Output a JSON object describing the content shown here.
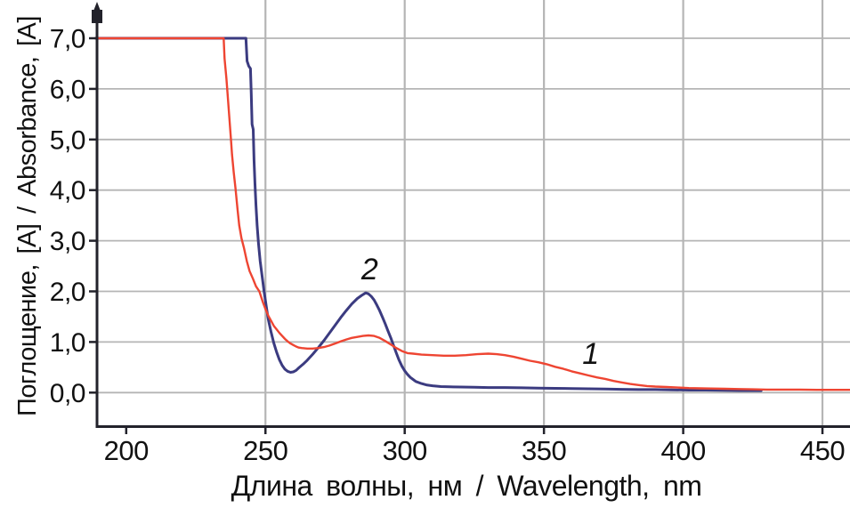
{
  "chart_data": {
    "type": "line",
    "title": "",
    "xlabel": "Длина волны, нм / Wavelength, nm",
    "ylabel": "Поглощение, [A] / Absorbance, [A]",
    "xlim": [
      189,
      460
    ],
    "ylim": [
      0,
      7
    ],
    "grid": "on",
    "legend": "none",
    "decimal_separator": ",",
    "x_ticks": [
      {
        "value": 200,
        "label": "200"
      },
      {
        "value": 250,
        "label": "250"
      },
      {
        "value": 300,
        "label": "300"
      },
      {
        "value": 350,
        "label": "350"
      },
      {
        "value": 400,
        "label": "400"
      },
      {
        "value": 450,
        "label": "450"
      }
    ],
    "y_ticks": [
      {
        "value": 0,
        "label": "0,0"
      },
      {
        "value": 1,
        "label": "1,0"
      },
      {
        "value": 2,
        "label": "2,0"
      },
      {
        "value": 3,
        "label": "3,0"
      },
      {
        "value": 4,
        "label": "4,0"
      },
      {
        "value": 5,
        "label": "5,0"
      },
      {
        "value": 6,
        "label": "6,0"
      },
      {
        "value": 7,
        "label": "7,0"
      }
    ],
    "vertical_gridlines_at": [
      250,
      300,
      350,
      400,
      450
    ],
    "horizontal_gridlines_at": [
      0,
      1,
      2,
      3,
      4,
      5,
      6,
      7
    ],
    "colors": {
      "background": "#ffffff",
      "axis": "#22222b",
      "grid": "#b5b5b5",
      "text": "#111111",
      "series_1": "#ee4532",
      "series_2": "#3b3b80"
    },
    "curve_labels": [
      {
        "text": "1",
        "x_nm": 366.8,
        "y_a": 0.76
      },
      {
        "text": "2",
        "x_nm": 287.4,
        "y_a": 2.43
      }
    ],
    "series": [
      {
        "name": "2",
        "color": "#3b3b80",
        "stroke_width": 3,
        "points": [
          [
            189,
            7.0
          ],
          [
            243,
            7.0
          ],
          [
            243.4,
            6.55
          ],
          [
            244,
            6.45
          ],
          [
            244.6,
            6.4
          ],
          [
            244.9,
            5.9
          ],
          [
            245.2,
            5.3
          ],
          [
            245.6,
            5.2
          ],
          [
            245.9,
            4.6
          ],
          [
            246.2,
            4.15
          ],
          [
            246.6,
            3.7
          ],
          [
            247,
            3.3
          ],
          [
            247.5,
            2.95
          ],
          [
            248.1,
            2.6
          ],
          [
            248.8,
            2.3
          ],
          [
            249.5,
            2.0
          ],
          [
            250.3,
            1.7
          ],
          [
            251,
            1.45
          ],
          [
            252,
            1.2
          ],
          [
            253,
            0.98
          ],
          [
            254,
            0.8
          ],
          [
            255,
            0.65
          ],
          [
            256,
            0.54
          ],
          [
            257,
            0.46
          ],
          [
            258,
            0.42
          ],
          [
            259,
            0.4
          ],
          [
            260,
            0.41
          ],
          [
            261,
            0.44
          ],
          [
            262,
            0.49
          ],
          [
            263.5,
            0.56
          ],
          [
            265,
            0.64
          ],
          [
            267,
            0.76
          ],
          [
            269,
            0.89
          ],
          [
            271,
            1.03
          ],
          [
            273,
            1.18
          ],
          [
            275,
            1.33
          ],
          [
            277,
            1.48
          ],
          [
            279,
            1.62
          ],
          [
            281,
            1.75
          ],
          [
            283,
            1.86
          ],
          [
            284.5,
            1.92
          ],
          [
            286,
            1.97
          ],
          [
            287,
            1.95
          ],
          [
            288,
            1.9
          ],
          [
            289,
            1.83
          ],
          [
            290,
            1.73
          ],
          [
            291,
            1.62
          ],
          [
            292,
            1.49
          ],
          [
            293,
            1.36
          ],
          [
            294,
            1.22
          ],
          [
            295,
            1.08
          ],
          [
            296,
            0.93
          ],
          [
            297,
            0.78
          ],
          [
            298,
            0.64
          ],
          [
            299,
            0.52
          ],
          [
            300,
            0.43
          ],
          [
            301,
            0.36
          ],
          [
            302,
            0.3
          ],
          [
            303,
            0.26
          ],
          [
            304,
            0.22
          ],
          [
            306,
            0.18
          ],
          [
            308,
            0.15
          ],
          [
            310,
            0.135
          ],
          [
            313,
            0.12
          ],
          [
            316,
            0.115
          ],
          [
            320,
            0.11
          ],
          [
            325,
            0.105
          ],
          [
            330,
            0.1
          ],
          [
            336,
            0.1
          ],
          [
            342,
            0.095
          ],
          [
            348,
            0.09
          ],
          [
            354,
            0.085
          ],
          [
            360,
            0.08
          ],
          [
            366,
            0.075
          ],
          [
            372,
            0.07
          ],
          [
            378,
            0.065
          ],
          [
            384,
            0.06
          ],
          [
            390,
            0.06
          ],
          [
            396,
            0.055
          ],
          [
            402,
            0.05
          ],
          [
            408,
            0.05
          ],
          [
            414,
            0.045
          ],
          [
            420,
            0.04
          ],
          [
            428,
            0.04
          ]
        ]
      },
      {
        "name": "1",
        "color": "#ee4532",
        "stroke_width": 2.4,
        "points": [
          [
            189,
            7.0
          ],
          [
            235,
            7.0
          ],
          [
            235.3,
            6.6
          ],
          [
            236,
            6.2
          ],
          [
            236.4,
            5.9
          ],
          [
            237,
            5.45
          ],
          [
            237.6,
            5.0
          ],
          [
            238,
            4.7
          ],
          [
            238.6,
            4.35
          ],
          [
            239.2,
            4.05
          ],
          [
            240,
            3.6
          ],
          [
            240.6,
            3.3
          ],
          [
            241.4,
            3.05
          ],
          [
            242.3,
            2.85
          ],
          [
            243.3,
            2.6
          ],
          [
            244.3,
            2.4
          ],
          [
            245.5,
            2.25
          ],
          [
            246.6,
            2.1
          ],
          [
            247.8,
            2.0
          ],
          [
            249,
            1.8
          ],
          [
            250,
            1.65
          ],
          [
            251,
            1.52
          ],
          [
            252,
            1.42
          ],
          [
            253,
            1.32
          ],
          [
            254,
            1.25
          ],
          [
            255,
            1.18
          ],
          [
            256,
            1.12
          ],
          [
            257,
            1.06
          ],
          [
            258,
            1.01
          ],
          [
            259,
            0.97
          ],
          [
            260,
            0.94
          ],
          [
            261,
            0.91
          ],
          [
            262,
            0.89
          ],
          [
            263,
            0.88
          ],
          [
            265,
            0.87
          ],
          [
            267,
            0.87
          ],
          [
            269,
            0.88
          ],
          [
            271,
            0.9
          ],
          [
            273,
            0.93
          ],
          [
            275,
            0.97
          ],
          [
            277,
            1.01
          ],
          [
            279,
            1.05
          ],
          [
            281,
            1.08
          ],
          [
            283,
            1.1
          ],
          [
            285,
            1.12
          ],
          [
            287,
            1.13
          ],
          [
            289,
            1.12
          ],
          [
            291,
            1.08
          ],
          [
            293,
            1.02
          ],
          [
            295,
            0.95
          ],
          [
            297,
            0.88
          ],
          [
            299,
            0.82
          ],
          [
            301,
            0.78
          ],
          [
            303,
            0.77
          ],
          [
            306,
            0.75
          ],
          [
            310,
            0.74
          ],
          [
            314,
            0.73
          ],
          [
            318,
            0.73
          ],
          [
            322,
            0.74
          ],
          [
            326,
            0.76
          ],
          [
            330,
            0.77
          ],
          [
            333,
            0.76
          ],
          [
            336,
            0.74
          ],
          [
            339,
            0.71
          ],
          [
            342,
            0.67
          ],
          [
            345,
            0.63
          ],
          [
            348,
            0.6
          ],
          [
            351,
            0.56
          ],
          [
            354,
            0.51
          ],
          [
            357,
            0.47
          ],
          [
            360,
            0.42
          ],
          [
            363,
            0.38
          ],
          [
            366,
            0.34
          ],
          [
            369,
            0.3
          ],
          [
            372,
            0.27
          ],
          [
            375,
            0.23
          ],
          [
            378,
            0.2
          ],
          [
            381,
            0.17
          ],
          [
            384,
            0.15
          ],
          [
            387,
            0.13
          ],
          [
            390,
            0.12
          ],
          [
            394,
            0.11
          ],
          [
            398,
            0.1
          ],
          [
            402,
            0.09
          ],
          [
            406,
            0.085
          ],
          [
            410,
            0.08
          ],
          [
            415,
            0.075
          ],
          [
            420,
            0.07
          ],
          [
            425,
            0.065
          ],
          [
            430,
            0.06
          ],
          [
            436,
            0.06
          ],
          [
            442,
            0.06
          ],
          [
            448,
            0.055
          ],
          [
            454,
            0.055
          ],
          [
            460,
            0.055
          ]
        ]
      }
    ]
  }
}
